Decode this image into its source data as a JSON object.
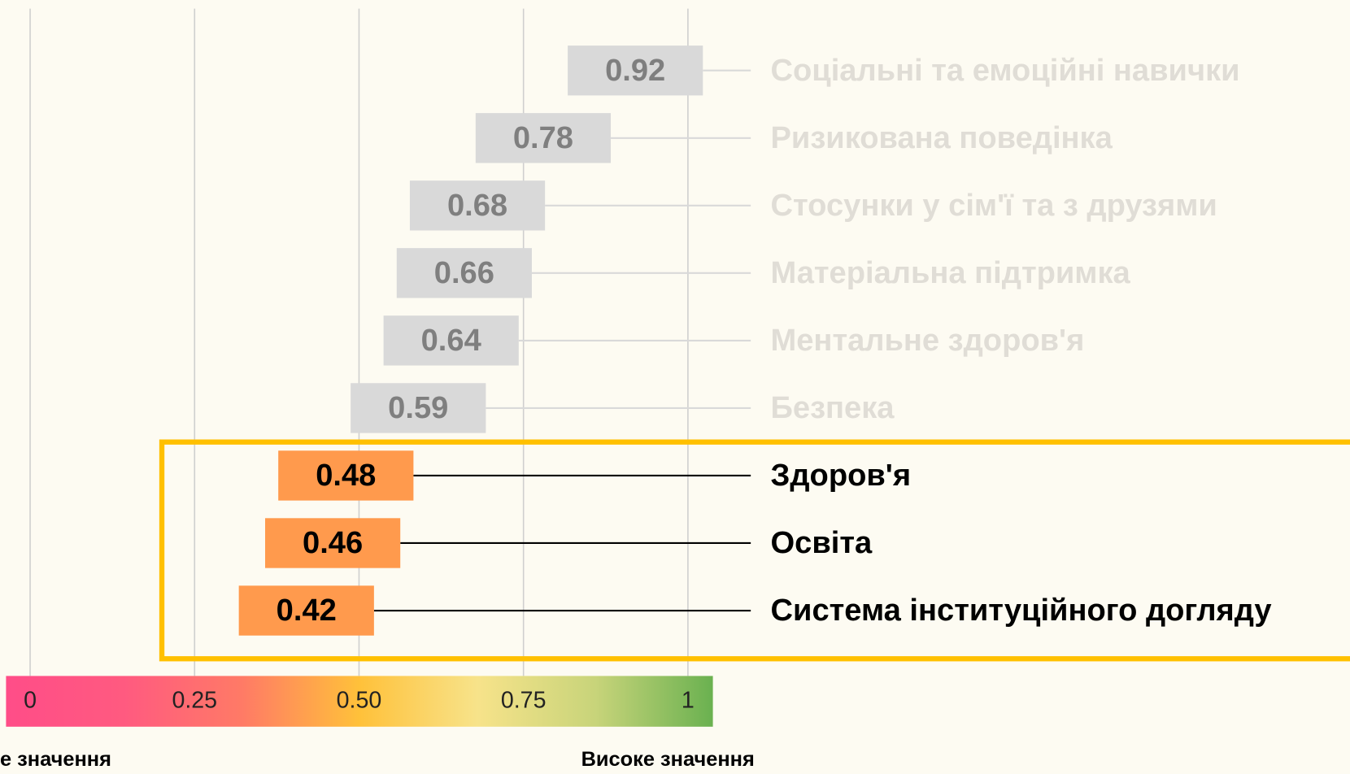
{
  "chart_data": {
    "type": "dot_bar",
    "categories": [
      "Соціальні та емоційні навички",
      "Ризикована поведінка",
      "Стосунки у сім'ї та з друзями",
      "Матеріальна підтримка",
      "Ментальне здоров'я",
      "Безпека",
      "Здоров'я",
      "Освіта",
      "Система інституційного догляду"
    ],
    "values": [
      0.92,
      0.78,
      0.68,
      0.66,
      0.64,
      0.59,
      0.48,
      0.46,
      0.42
    ],
    "colors": [
      "#d9d9d9",
      "#d9d9d9",
      "#d9d9d9",
      "#d9d9d9",
      "#d9d9d9",
      "#d9d9d9",
      "#ff9a4d",
      "#ff9a4d",
      "#ff9a4d"
    ],
    "muted_color": "#d9d9d9",
    "highlight_color": "#ffc000",
    "xlim": [
      0,
      1
    ],
    "xticks": [
      0,
      0.25,
      {
        "value": 0.5,
        "label": "0.50"
      },
      0.75,
      1
    ],
    "grid": true,
    "colorbar_colors": [
      "#ff4d88",
      "#ff5a80",
      "#ff7a66",
      "#ffc13a",
      "#f7e38a",
      "#c8d47a",
      "#6ab150"
    ],
    "low_label": "е значення",
    "high_label": "Високе значення"
  }
}
